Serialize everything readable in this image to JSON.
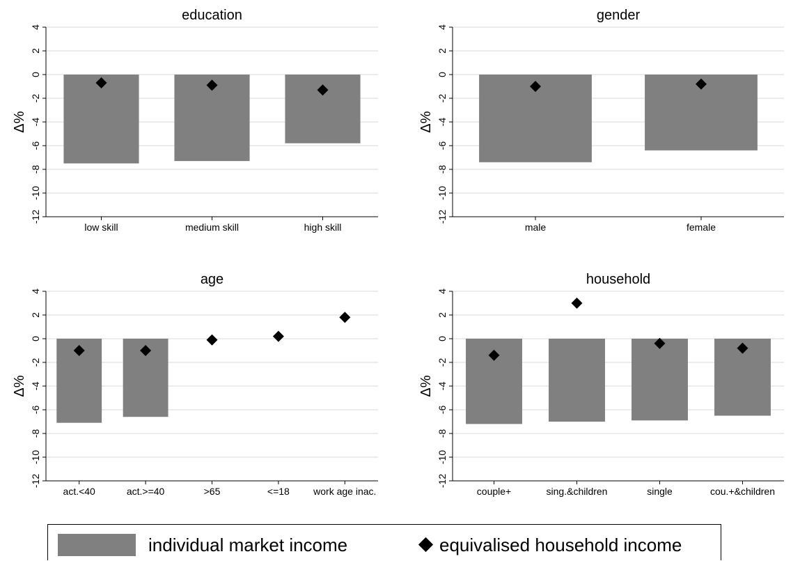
{
  "chart_data": [
    {
      "type": "bar",
      "title": "education",
      "ylabel": "Δ%",
      "ylim": [
        -12,
        4
      ],
      "yticks": [
        4,
        2,
        0,
        -2,
        -4,
        -6,
        -8,
        -10,
        -12
      ],
      "categories": [
        "low skill",
        "medium skill",
        "high skill"
      ],
      "series": [
        {
          "name": "individual market income",
          "kind": "bar",
          "values": [
            -7.5,
            -7.3,
            -5.8
          ]
        },
        {
          "name": "equivalised household income",
          "kind": "marker",
          "values": [
            -0.7,
            -0.9,
            -1.3
          ]
        }
      ]
    },
    {
      "type": "bar",
      "title": "gender",
      "ylabel": "Δ%",
      "ylim": [
        -12,
        4
      ],
      "yticks": [
        4,
        2,
        0,
        -2,
        -4,
        -6,
        -8,
        -10,
        -12
      ],
      "categories": [
        "male",
        "female"
      ],
      "series": [
        {
          "name": "individual market income",
          "kind": "bar",
          "values": [
            -7.4,
            -6.4
          ]
        },
        {
          "name": "equivalised household income",
          "kind": "marker",
          "values": [
            -1.0,
            -0.8
          ]
        }
      ]
    },
    {
      "type": "bar",
      "title": "age",
      "ylabel": "Δ%",
      "ylim": [
        -12,
        4
      ],
      "yticks": [
        4,
        2,
        0,
        -2,
        -4,
        -6,
        -8,
        -10,
        -12
      ],
      "categories": [
        "act.<40",
        "act.>=40",
        ">65",
        "<=18",
        "work age inac."
      ],
      "series": [
        {
          "name": "individual market income",
          "kind": "bar",
          "values": [
            -7.1,
            -6.6,
            null,
            null,
            null
          ]
        },
        {
          "name": "equivalised household income",
          "kind": "marker",
          "values": [
            -1.0,
            -1.0,
            -0.1,
            0.2,
            1.8
          ]
        }
      ]
    },
    {
      "type": "bar",
      "title": "household",
      "ylabel": "Δ%",
      "ylim": [
        -12,
        4
      ],
      "yticks": [
        4,
        2,
        0,
        -2,
        -4,
        -6,
        -8,
        -10,
        -12
      ],
      "categories": [
        "couple+",
        "sing.&children",
        "single",
        "cou.+&children"
      ],
      "series": [
        {
          "name": "individual market income",
          "kind": "bar",
          "values": [
            -7.2,
            -7.0,
            -6.9,
            -6.5
          ]
        },
        {
          "name": "equivalised household income",
          "kind": "marker",
          "values": [
            -1.4,
            3.0,
            -0.4,
            -0.8
          ]
        }
      ]
    }
  ],
  "legend": {
    "items": [
      {
        "label": "individual market income",
        "kind": "bar"
      },
      {
        "label": "equivalised household income",
        "kind": "marker"
      }
    ],
    "placement": "bottom"
  },
  "colors": {
    "bar": "#808080",
    "marker": "#000000",
    "grid": "#d9d9d9",
    "axis": "#000000"
  }
}
